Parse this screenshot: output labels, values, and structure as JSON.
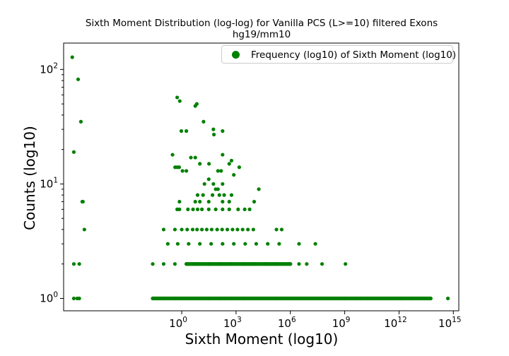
{
  "chart_data": {
    "type": "scatter",
    "title": "Sixth Moment Distribution (log-log) for Vanilla PCS (L>=10) filtered Exons",
    "subtitle": "hg19/mm10",
    "xlabel": "Sixth Moment (log10)",
    "ylabel": "Counts (log10)",
    "x_scale": "log",
    "y_scale": "log",
    "xlim": [
      3e-07,
      2000000000000000.0
    ],
    "ylim": [
      0.78,
      170
    ],
    "grid": false,
    "legend_position": "top-right",
    "x_ticks": [
      {
        "base": "10",
        "exp": "0",
        "value": 1
      },
      {
        "base": "10",
        "exp": "3",
        "value": 1000
      },
      {
        "base": "10",
        "exp": "6",
        "value": 1000000
      },
      {
        "base": "10",
        "exp": "9",
        "value": 1000000000
      },
      {
        "base": "10",
        "exp": "12",
        "value": 1000000000000
      },
      {
        "base": "10",
        "exp": "15",
        "value": 1000000000000000
      }
    ],
    "y_ticks": [
      {
        "base": "10",
        "exp": "0",
        "value": 1
      },
      {
        "base": "10",
        "exp": "1",
        "value": 10
      },
      {
        "base": "10",
        "exp": "2",
        "value": 100
      }
    ],
    "series": [
      {
        "name": "Frequency (log10) of Sixth Moment (log10)",
        "color": "#008000",
        "marker": "circle",
        "points": [
          {
            "x": 9e-07,
            "y": 128
          },
          {
            "x": 1.9e-06,
            "y": 82
          },
          {
            "x": 2.7e-06,
            "y": 35
          },
          {
            "x": 1.1e-06,
            "y": 19
          },
          {
            "x": 3.2e-06,
            "y": 7
          },
          {
            "x": 3.5e-06,
            "y": 7
          },
          {
            "x": 4.2e-06,
            "y": 4
          },
          {
            "x": 1.1e-06,
            "y": 2
          },
          {
            "x": 2.2e-06,
            "y": 2
          },
          {
            "x": 0.56,
            "y": 57
          },
          {
            "x": 0.78,
            "y": 53
          },
          {
            "x": 5.6,
            "y": 48
          },
          {
            "x": 6.8,
            "y": 50
          },
          {
            "x": 0.95,
            "y": 29
          },
          {
            "x": 1.8,
            "y": 29
          },
          {
            "x": 16,
            "y": 35
          },
          {
            "x": 56,
            "y": 30
          },
          {
            "x": 60,
            "y": 27
          },
          {
            "x": 180,
            "y": 29
          },
          {
            "x": 0.31,
            "y": 18
          },
          {
            "x": 3.2,
            "y": 17
          },
          {
            "x": 5.6,
            "y": 17
          },
          {
            "x": 0.43,
            "y": 14
          },
          {
            "x": 0.56,
            "y": 14
          },
          {
            "x": 0.72,
            "y": 14
          },
          {
            "x": 1.1,
            "y": 13
          },
          {
            "x": 1.8,
            "y": 13
          },
          {
            "x": 10,
            "y": 15
          },
          {
            "x": 32,
            "y": 15
          },
          {
            "x": 100,
            "y": 13
          },
          {
            "x": 150,
            "y": 13
          },
          {
            "x": 180,
            "y": 18
          },
          {
            "x": 560,
            "y": 16
          },
          {
            "x": 420,
            "y": 15
          },
          {
            "x": 1500,
            "y": 14
          },
          {
            "x": 750,
            "y": 12
          },
          {
            "x": 31,
            "y": 11
          },
          {
            "x": 56,
            "y": 10
          },
          {
            "x": 75,
            "y": 9
          },
          {
            "x": 100,
            "y": 9
          },
          {
            "x": 180,
            "y": 10
          },
          {
            "x": 18,
            "y": 10
          },
          {
            "x": 7.5,
            "y": 8
          },
          {
            "x": 15,
            "y": 8
          },
          {
            "x": 50,
            "y": 8
          },
          {
            "x": 120,
            "y": 8
          },
          {
            "x": 220,
            "y": 8
          },
          {
            "x": 560,
            "y": 8
          },
          {
            "x": 18000,
            "y": 9
          },
          {
            "x": 0.75,
            "y": 7
          },
          {
            "x": 5.6,
            "y": 7
          },
          {
            "x": 10,
            "y": 7
          },
          {
            "x": 31,
            "y": 7
          },
          {
            "x": 180,
            "y": 7
          },
          {
            "x": 420,
            "y": 7
          },
          {
            "x": 10000,
            "y": 7
          },
          {
            "x": 0.56,
            "y": 6
          },
          {
            "x": 0.75,
            "y": 6
          },
          {
            "x": 2.2,
            "y": 6
          },
          {
            "x": 4.2,
            "y": 6
          },
          {
            "x": 7.5,
            "y": 6
          },
          {
            "x": 13,
            "y": 6
          },
          {
            "x": 31,
            "y": 6
          },
          {
            "x": 75,
            "y": 6
          },
          {
            "x": 180,
            "y": 6
          },
          {
            "x": 420,
            "y": 6
          },
          {
            "x": 1300,
            "y": 6
          },
          {
            "x": 3000,
            "y": 6
          },
          {
            "x": 5600,
            "y": 6
          },
          {
            "x": 0.1,
            "y": 4
          },
          {
            "x": 0.42,
            "y": 4
          },
          {
            "x": 1,
            "y": 4
          },
          {
            "x": 2,
            "y": 4
          },
          {
            "x": 4,
            "y": 4
          },
          {
            "x": 7,
            "y": 4
          },
          {
            "x": 13,
            "y": 4
          },
          {
            "x": 24,
            "y": 4
          },
          {
            "x": 45,
            "y": 4
          },
          {
            "x": 90,
            "y": 4
          },
          {
            "x": 170,
            "y": 4
          },
          {
            "x": 330,
            "y": 4
          },
          {
            "x": 640,
            "y": 4
          },
          {
            "x": 1200,
            "y": 4
          },
          {
            "x": 2300,
            "y": 4
          },
          {
            "x": 4500,
            "y": 4
          },
          {
            "x": 9000,
            "y": 4
          },
          {
            "x": 170000,
            "y": 4
          },
          {
            "x": 330000,
            "y": 4
          },
          {
            "x": 0.17,
            "y": 3
          },
          {
            "x": 0.6,
            "y": 3
          },
          {
            "x": 2.4,
            "y": 3
          },
          {
            "x": 10,
            "y": 3
          },
          {
            "x": 42,
            "y": 3
          },
          {
            "x": 180,
            "y": 3
          },
          {
            "x": 750,
            "y": 3
          },
          {
            "x": 3200,
            "y": 3
          },
          {
            "x": 13000,
            "y": 3
          },
          {
            "x": 56000,
            "y": 3
          },
          {
            "x": 240000,
            "y": 3
          },
          {
            "x": 3000000,
            "y": 3
          },
          {
            "x": 24000000,
            "y": 3
          },
          {
            "x": 0.025,
            "y": 2
          },
          {
            "x": 0.1,
            "y": 2
          },
          {
            "x": 0.42,
            "y": 2
          },
          {
            "x": 1.8,
            "y": 2
          },
          {
            "x": 7.5,
            "y": 2
          },
          {
            "x": 31,
            "y": 2
          },
          {
            "x": 130,
            "y": 2
          },
          {
            "x": 560,
            "y": 2
          },
          {
            "x": 2400,
            "y": 2
          },
          {
            "x": 10000,
            "y": 2
          },
          {
            "x": 42000,
            "y": 2
          },
          {
            "x": 180000,
            "y": 2
          },
          {
            "x": 750000,
            "y": 2
          },
          {
            "x": 1000000,
            "y": 2
          },
          {
            "x": 3000000,
            "y": 2
          },
          {
            "x": 8000000,
            "y": 2
          },
          {
            "x": 56000000,
            "y": 2
          },
          {
            "x": 1100000000,
            "y": 2
          },
          {
            "x": 1.1e-06,
            "y": 1
          },
          {
            "x": 1.7e-06,
            "y": 1
          },
          {
            "x": 2.2e-06,
            "y": 1
          },
          {
            "x": 0.025,
            "y": 1
          },
          {
            "x": 0.1,
            "y": 1
          },
          {
            "x": 0.42,
            "y": 1
          },
          {
            "x": 1.8,
            "y": 1
          },
          {
            "x": 7.5,
            "y": 1
          },
          {
            "x": 31,
            "y": 1
          },
          {
            "x": 130,
            "y": 1
          },
          {
            "x": 560,
            "y": 1
          },
          {
            "x": 2400,
            "y": 1
          },
          {
            "x": 10000,
            "y": 1
          },
          {
            "x": 42000,
            "y": 1
          },
          {
            "x": 180000,
            "y": 1
          },
          {
            "x": 750000,
            "y": 1
          },
          {
            "x": 3000000,
            "y": 1
          },
          {
            "x": 13000000,
            "y": 1
          },
          {
            "x": 56000000,
            "y": 1
          },
          {
            "x": 240000000,
            "y": 1
          },
          {
            "x": 1000000000,
            "y": 1
          },
          {
            "x": 4200000000,
            "y": 1
          },
          {
            "x": 18000000000,
            "y": 1
          },
          {
            "x": 75000000000,
            "y": 1
          },
          {
            "x": 320000000000,
            "y": 1
          },
          {
            "x": 1300000000000,
            "y": 1
          },
          {
            "x": 5600000000000,
            "y": 1
          },
          {
            "x": 24000000000000,
            "y": 1
          },
          {
            "x": 56000000000000,
            "y": 1
          },
          {
            "x": 500000000000000,
            "y": 1
          }
        ]
      }
    ]
  }
}
